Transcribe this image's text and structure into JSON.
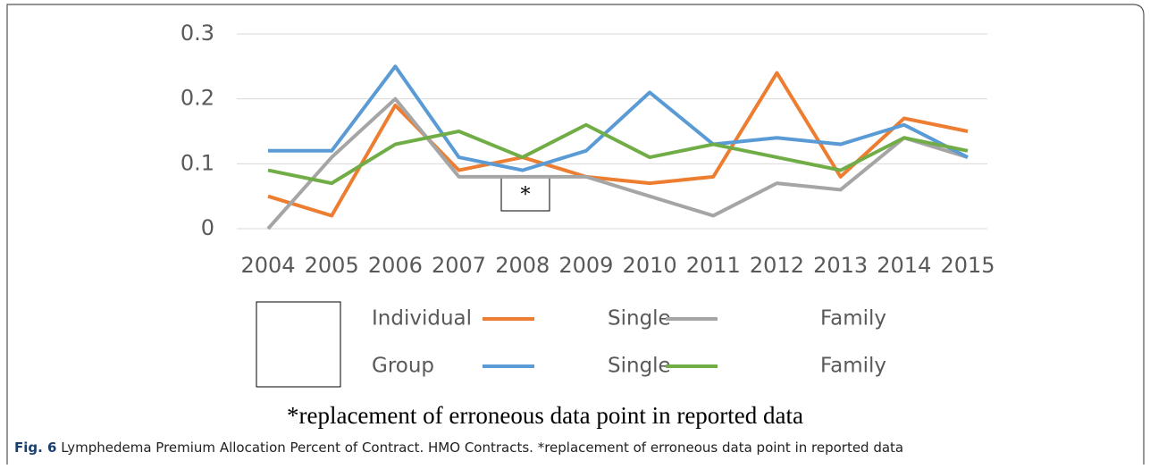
{
  "chart_data": {
    "type": "line",
    "categories": [
      "2004",
      "2005",
      "2006",
      "2007",
      "2008",
      "2009",
      "2010",
      "2011",
      "2012",
      "2013",
      "2014",
      "2015"
    ],
    "series": [
      {
        "name": "Single",
        "color": "#ed7d31",
        "values": [
          0.05,
          0.02,
          0.19,
          0.09,
          0.11,
          0.08,
          0.07,
          0.08,
          0.24,
          0.08,
          0.17,
          0.15
        ]
      },
      {
        "name": "Family",
        "color": "#a5a5a5",
        "values": [
          0,
          0.11,
          0.2,
          0.08,
          0.08,
          0.08,
          0.05,
          0.02,
          0.07,
          0.06,
          0.14,
          0.11
        ]
      },
      {
        "name": "Single",
        "color": "#5b9bd5",
        "values": [
          0.12,
          0.12,
          0.25,
          0.11,
          0.09,
          0.12,
          0.21,
          0.13,
          0.14,
          0.13,
          0.16,
          0.11
        ]
      },
      {
        "name": "Family",
        "color": "#70ad47",
        "values": [
          0.09,
          0.07,
          0.13,
          0.15,
          0.11,
          0.16,
          0.11,
          0.13,
          0.11,
          0.09,
          0.14,
          0.12
        ]
      }
    ],
    "legend_row_labels": [
      "Individual",
      "Group"
    ],
    "ylim": [
      0,
      0.3
    ],
    "yticks": [
      0,
      0.1,
      0.2,
      0.3
    ],
    "grid": true,
    "annotation": "*",
    "footnote": "*replacement of erroneous data point in reported data",
    "caption_label": "Fig. 6",
    "caption_text": " Lymphedema Premium Allocation Percent of Contract. HMO Contracts. *replacement of erroneous data point in reported data"
  }
}
